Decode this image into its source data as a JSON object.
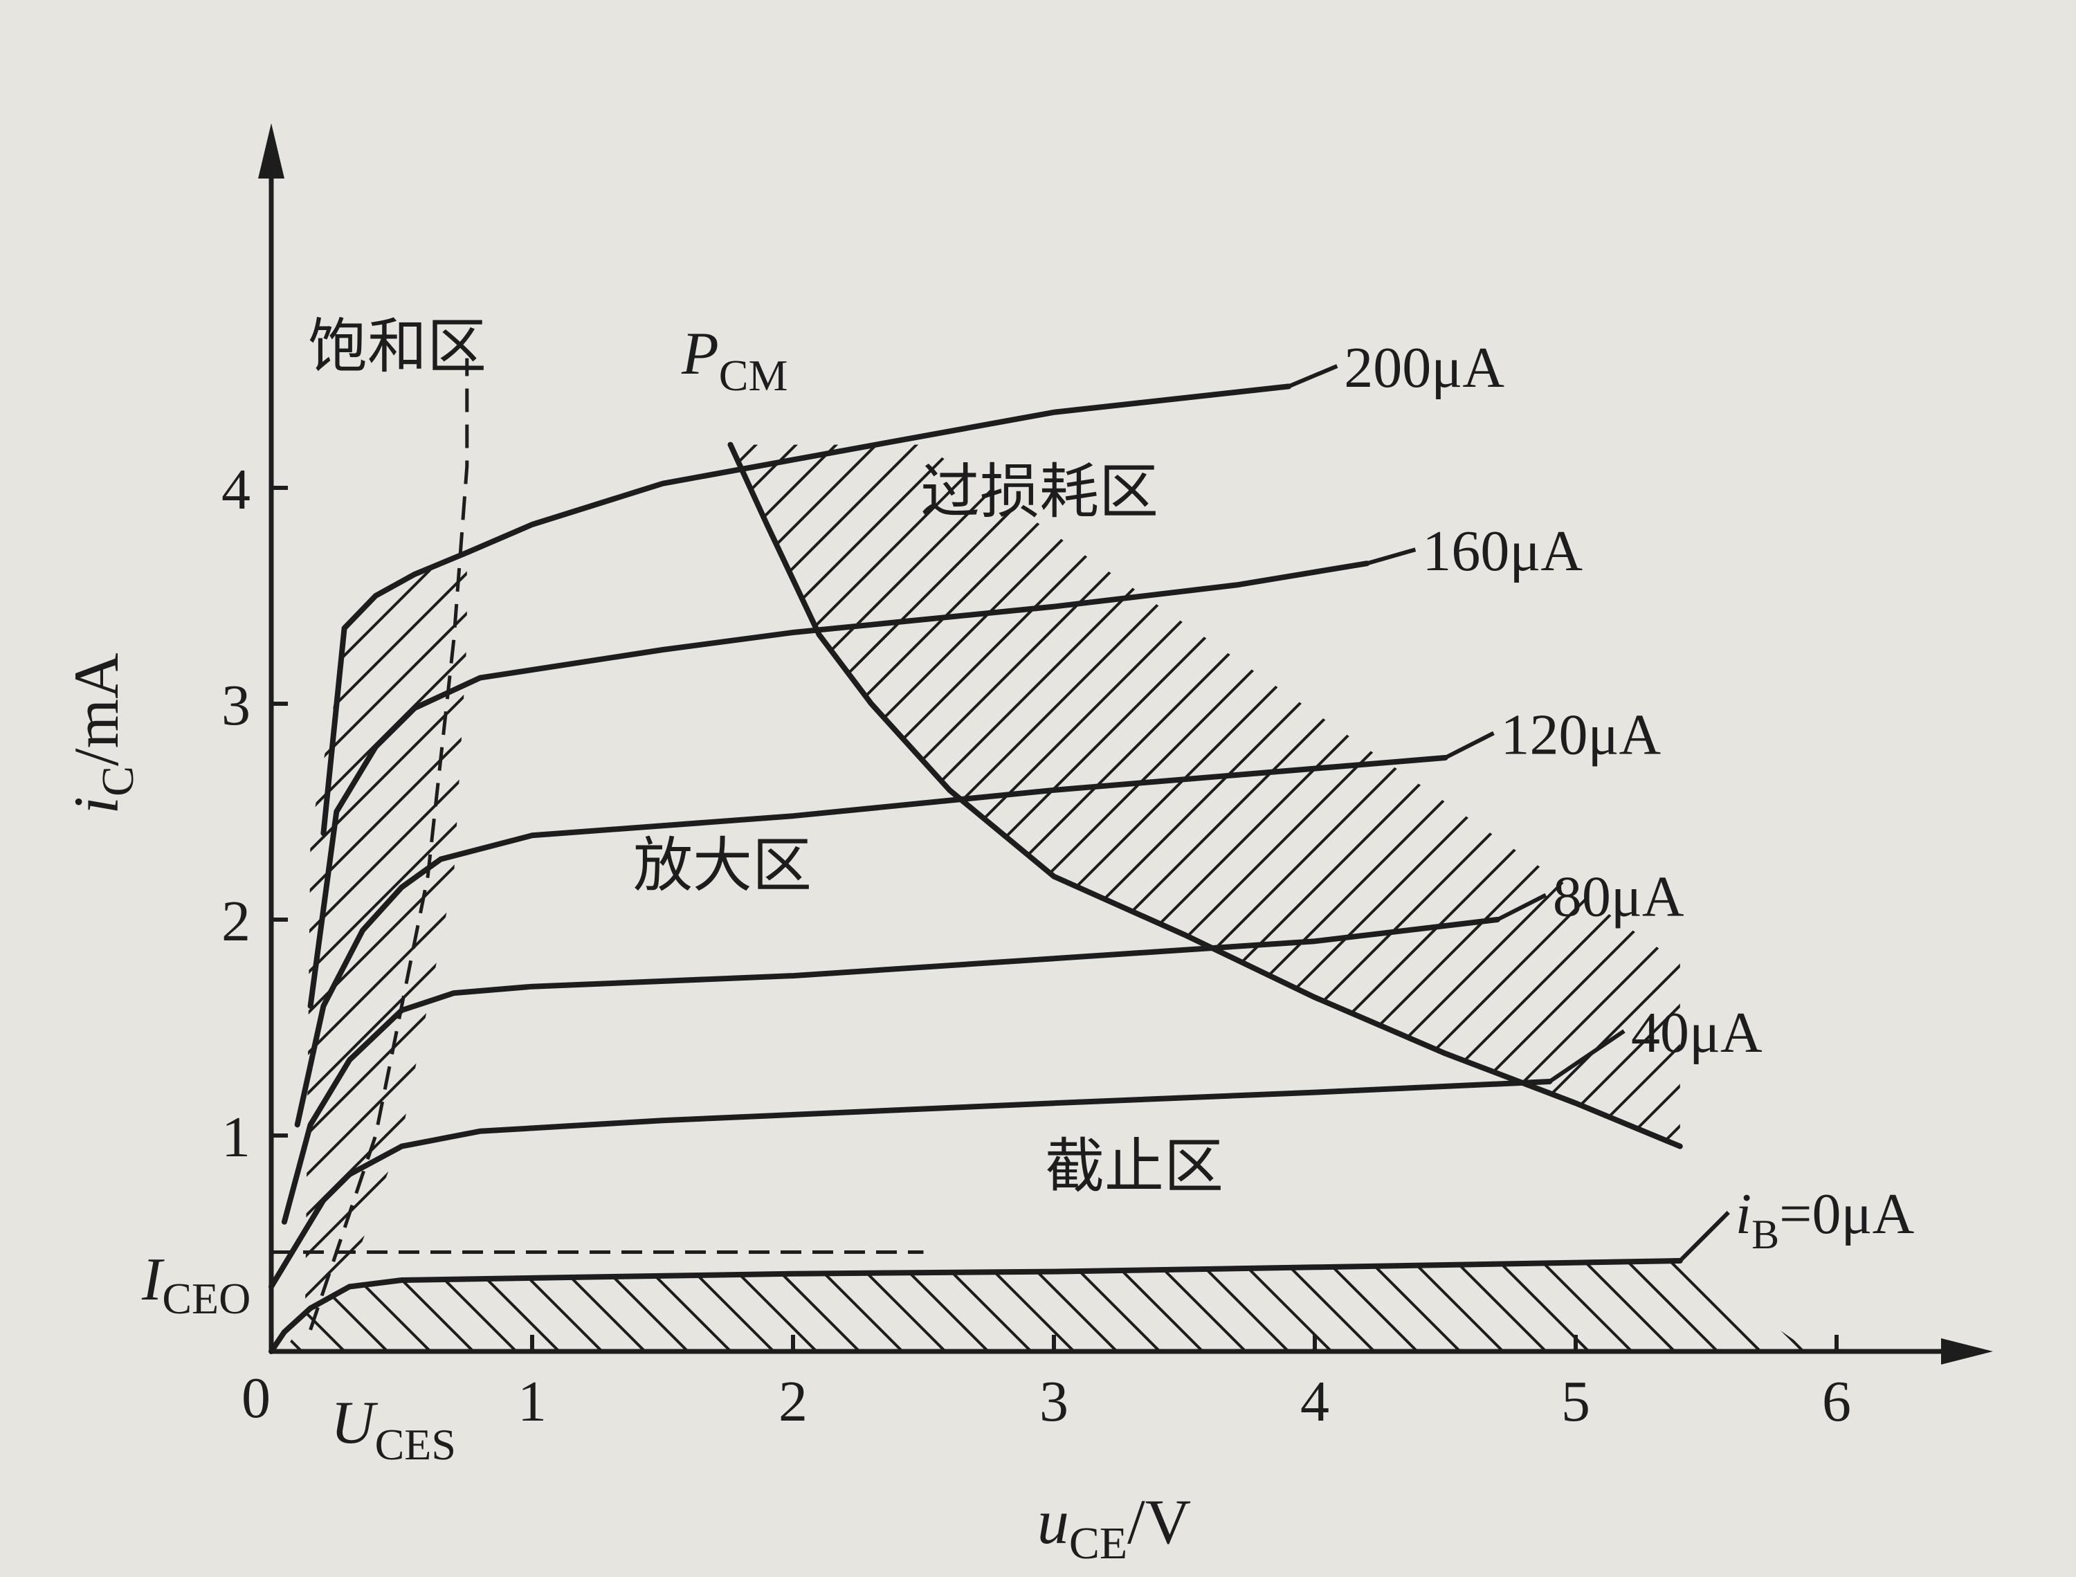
{
  "colors": {
    "paper": "#e7e5e0",
    "ink": "#1d1d1d"
  },
  "chart_data": {
    "type": "line",
    "title": "",
    "xlabel": {
      "main": "u",
      "sub": "CE",
      "unit": "/V"
    },
    "ylabel": {
      "main": "i",
      "sub": "C",
      "unit": "/mA"
    },
    "xlim": [
      0,
      6.6
    ],
    "ylim": [
      0,
      5.1
    ],
    "x_ticks": [
      "1",
      "2",
      "3",
      "4",
      "5",
      "6"
    ],
    "y_ticks": [
      "1",
      "2",
      "3",
      "4"
    ],
    "origin_label": "0",
    "grid": false,
    "series": [
      {
        "name": "i",
        "name_sub": "B",
        "name_rest": "=0μA",
        "label_end": [
          5.4,
          0.58
        ],
        "points": [
          [
            0,
            0
          ],
          [
            0.05,
            0.09
          ],
          [
            0.15,
            0.2
          ],
          [
            0.3,
            0.3
          ],
          [
            0.5,
            0.33
          ],
          [
            1,
            0.34
          ],
          [
            2,
            0.36
          ],
          [
            3,
            0.37
          ],
          [
            4,
            0.39
          ],
          [
            5.4,
            0.42
          ]
        ]
      },
      {
        "name": "40μA",
        "label_end": [
          5.0,
          1.42
        ],
        "points": [
          [
            0,
            0.3
          ],
          [
            0.1,
            0.5
          ],
          [
            0.2,
            0.7
          ],
          [
            0.3,
            0.82
          ],
          [
            0.5,
            0.95
          ],
          [
            0.8,
            1.02
          ],
          [
            1.5,
            1.07
          ],
          [
            3,
            1.15
          ],
          [
            4,
            1.2
          ],
          [
            4.9,
            1.25
          ]
        ]
      },
      {
        "name": "80μA",
        "label_end": [
          4.7,
          2.05
        ],
        "points": [
          [
            0.05,
            0.6
          ],
          [
            0.15,
            1.05
          ],
          [
            0.3,
            1.35
          ],
          [
            0.5,
            1.58
          ],
          [
            0.7,
            1.66
          ],
          [
            1,
            1.69
          ],
          [
            2,
            1.74
          ],
          [
            3,
            1.82
          ],
          [
            4,
            1.9
          ],
          [
            4.7,
            2.0
          ]
        ]
      },
      {
        "name": "120μA",
        "label_end": [
          4.5,
          2.8
        ],
        "points": [
          [
            0.1,
            1.05
          ],
          [
            0.2,
            1.6
          ],
          [
            0.35,
            1.95
          ],
          [
            0.5,
            2.15
          ],
          [
            0.65,
            2.28
          ],
          [
            1,
            2.39
          ],
          [
            2,
            2.48
          ],
          [
            3,
            2.6
          ],
          [
            4,
            2.7
          ],
          [
            4.5,
            2.75
          ]
        ]
      },
      {
        "name": "160μA",
        "label_end": [
          4.2,
          3.65
        ],
        "points": [
          [
            0.15,
            1.6
          ],
          [
            0.25,
            2.5
          ],
          [
            0.4,
            2.8
          ],
          [
            0.55,
            2.98
          ],
          [
            0.8,
            3.12
          ],
          [
            1.5,
            3.25
          ],
          [
            2,
            3.33
          ],
          [
            3,
            3.45
          ],
          [
            3.7,
            3.55
          ],
          [
            4.2,
            3.65
          ]
        ]
      },
      {
        "name": "200μA",
        "label_end": [
          3.9,
          4.5
        ],
        "points": [
          [
            0.2,
            2.4
          ],
          [
            0.28,
            3.35
          ],
          [
            0.4,
            3.5
          ],
          [
            0.55,
            3.6
          ],
          [
            0.75,
            3.7
          ],
          [
            1,
            3.83
          ],
          [
            1.5,
            4.02
          ],
          [
            2,
            4.13
          ],
          [
            3,
            4.35
          ],
          [
            3.9,
            4.47
          ]
        ]
      }
    ],
    "pcm_curve": {
      "label_main": "P",
      "label_sub": "CM",
      "points": [
        [
          1.76,
          4.2
        ],
        [
          1.9,
          3.83
        ],
        [
          2.1,
          3.32
        ],
        [
          2.3,
          3.0
        ],
        [
          2.6,
          2.6
        ],
        [
          3,
          2.2
        ],
        [
          3.5,
          1.93
        ],
        [
          4,
          1.64
        ],
        [
          4.5,
          1.38
        ],
        [
          5.0,
          1.15
        ],
        [
          5.4,
          0.95
        ]
      ]
    },
    "iceo": {
      "label_main": "I",
      "label_sub": "CEO",
      "value": 0.46
    },
    "uces": {
      "label_main": "U",
      "label_sub": "CES",
      "value": 0.15
    },
    "regions": [
      {
        "id": "saturation",
        "label": "饱和区"
      },
      {
        "id": "overloss",
        "label": "过损耗区"
      },
      {
        "id": "amplification",
        "label": "放大区"
      },
      {
        "id": "cutoff",
        "label": "截止区"
      }
    ]
  }
}
